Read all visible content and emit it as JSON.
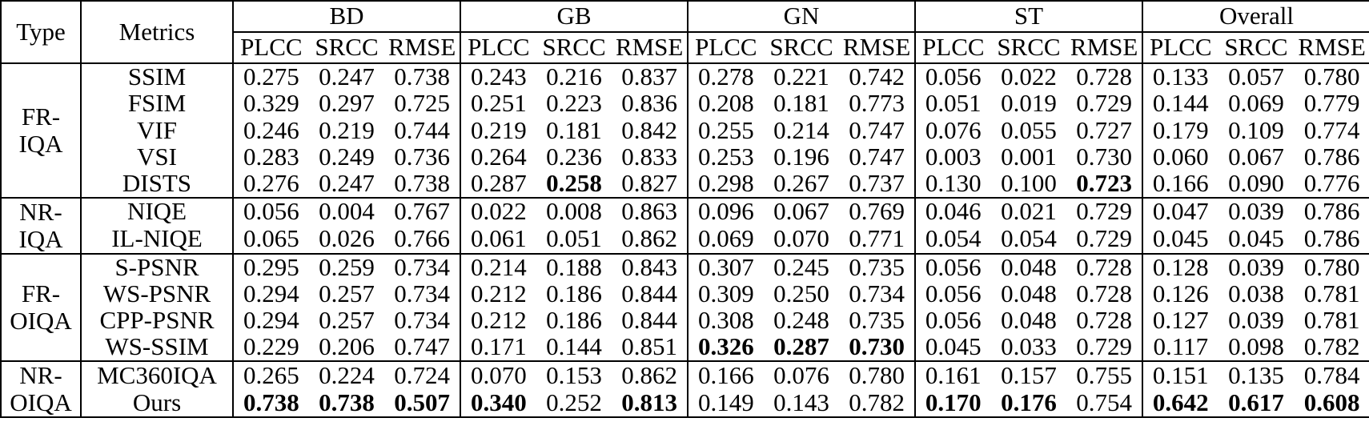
{
  "page": {
    "background": "#ffffff",
    "text_color": "#000000"
  },
  "table": {
    "header": {
      "type_label": "Type",
      "metrics_label": "Metrics",
      "groups": [
        "BD",
        "GB",
        "GN",
        "ST",
        "Overall"
      ],
      "sub_columns": [
        "PLCC",
        "SRCC",
        "RMSE"
      ]
    },
    "sections": [
      {
        "type_lines": [
          "FR-",
          "IQA"
        ],
        "rows": [
          {
            "metric": "SSIM",
            "values": [
              "0.275",
              "0.247",
              "0.738",
              "0.243",
              "0.216",
              "0.837",
              "0.278",
              "0.221",
              "0.742",
              "0.056",
              "0.022",
              "0.728",
              "0.133",
              "0.057",
              "0.780"
            ],
            "bold_indices": []
          },
          {
            "metric": "FSIM",
            "values": [
              "0.329",
              "0.297",
              "0.725",
              "0.251",
              "0.223",
              "0.836",
              "0.208",
              "0.181",
              "0.773",
              "0.051",
              "0.019",
              "0.729",
              "0.144",
              "0.069",
              "0.779"
            ],
            "bold_indices": []
          },
          {
            "metric": "VIF",
            "values": [
              "0.246",
              "0.219",
              "0.744",
              "0.219",
              "0.181",
              "0.842",
              "0.255",
              "0.214",
              "0.747",
              "0.076",
              "0.055",
              "0.727",
              "0.179",
              "0.109",
              "0.774"
            ],
            "bold_indices": []
          },
          {
            "metric": "VSI",
            "values": [
              "0.283",
              "0.249",
              "0.736",
              "0.264",
              "0.236",
              "0.833",
              "0.253",
              "0.196",
              "0.747",
              "0.003",
              "0.001",
              "0.730",
              "0.060",
              "0.067",
              "0.786"
            ],
            "bold_indices": []
          },
          {
            "metric": "DISTS",
            "values": [
              "0.276",
              "0.247",
              "0.738",
              "0.287",
              "0.258",
              "0.827",
              "0.298",
              "0.267",
              "0.737",
              "0.130",
              "0.100",
              "0.723",
              "0.166",
              "0.090",
              "0.776"
            ],
            "bold_indices": [
              4,
              11
            ]
          }
        ]
      },
      {
        "type_lines": [
          "NR-",
          "IQA"
        ],
        "rows": [
          {
            "metric": "NIQE",
            "values": [
              "0.056",
              "0.004",
              "0.767",
              "0.022",
              "0.008",
              "0.863",
              "0.096",
              "0.067",
              "0.769",
              "0.046",
              "0.021",
              "0.729",
              "0.047",
              "0.039",
              "0.786"
            ],
            "bold_indices": []
          },
          {
            "metric": "IL-NIQE",
            "values": [
              "0.065",
              "0.026",
              "0.766",
              "0.061",
              "0.051",
              "0.862",
              "0.069",
              "0.070",
              "0.771",
              "0.054",
              "0.054",
              "0.729",
              "0.045",
              "0.045",
              "0.786"
            ],
            "bold_indices": []
          }
        ]
      },
      {
        "type_lines": [
          "FR-",
          "OIQA"
        ],
        "rows": [
          {
            "metric": "S-PSNR",
            "values": [
              "0.295",
              "0.259",
              "0.734",
              "0.214",
              "0.188",
              "0.843",
              "0.307",
              "0.245",
              "0.735",
              "0.056",
              "0.048",
              "0.728",
              "0.128",
              "0.039",
              "0.780"
            ],
            "bold_indices": []
          },
          {
            "metric": "WS-PSNR",
            "values": [
              "0.294",
              "0.257",
              "0.734",
              "0.212",
              "0.186",
              "0.844",
              "0.309",
              "0.250",
              "0.734",
              "0.056",
              "0.048",
              "0.728",
              "0.126",
              "0.038",
              "0.781"
            ],
            "bold_indices": []
          },
          {
            "metric": "CPP-PSNR",
            "values": [
              "0.294",
              "0.257",
              "0.734",
              "0.212",
              "0.186",
              "0.844",
              "0.308",
              "0.248",
              "0.735",
              "0.056",
              "0.048",
              "0.728",
              "0.127",
              "0.039",
              "0.781"
            ],
            "bold_indices": []
          },
          {
            "metric": "WS-SSIM",
            "values": [
              "0.229",
              "0.206",
              "0.747",
              "0.171",
              "0.144",
              "0.851",
              "0.326",
              "0.287",
              "0.730",
              "0.045",
              "0.033",
              "0.729",
              "0.117",
              "0.098",
              "0.782"
            ],
            "bold_indices": [
              6,
              7,
              8
            ]
          }
        ]
      },
      {
        "type_lines": [
          "NR-",
          "OIQA"
        ],
        "rows": [
          {
            "metric": "MC360IQA",
            "values": [
              "0.265",
              "0.224",
              "0.724",
              "0.070",
              "0.153",
              "0.862",
              "0.166",
              "0.076",
              "0.780",
              "0.161",
              "0.157",
              "0.755",
              "0.151",
              "0.135",
              "0.784"
            ],
            "bold_indices": []
          },
          {
            "metric": "Ours",
            "values": [
              "0.738",
              "0.738",
              "0.507",
              "0.340",
              "0.252",
              "0.813",
              "0.149",
              "0.143",
              "0.782",
              "0.170",
              "0.176",
              "0.754",
              "0.642",
              "0.617",
              "0.608"
            ],
            "bold_indices": [
              0,
              1,
              2,
              3,
              5,
              9,
              10,
              12,
              13,
              14
            ]
          }
        ]
      }
    ]
  }
}
